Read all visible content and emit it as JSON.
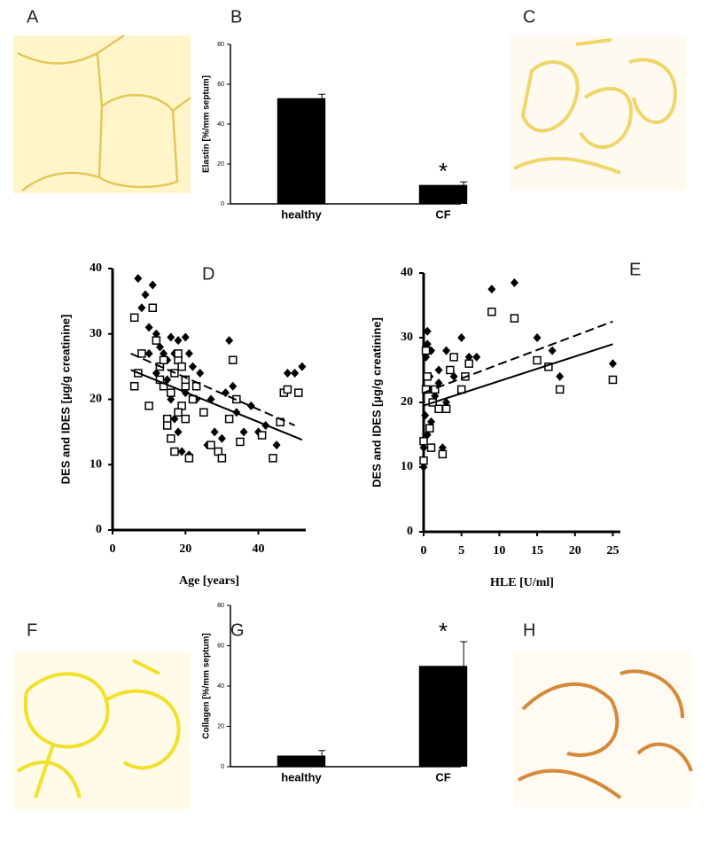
{
  "panel_labels": [
    "A",
    "C",
    "F",
    "H"
  ],
  "chart_data": [
    {
      "type": "bar",
      "title": "B",
      "ylabel": "Elastin [%/mm septum]",
      "categories": [
        "healthy",
        "CF"
      ],
      "values": [
        53,
        9.5
      ],
      "errors": [
        2,
        1.5
      ],
      "color": "#000000",
      "ylim": [
        0,
        80
      ],
      "yticks": [
        0,
        20,
        40,
        60,
        80
      ],
      "annotation": "*",
      "annotation_category": 1
    },
    {
      "type": "scatter",
      "title": "D",
      "xlabel": "Age [years]",
      "ylabel": "DES and IDES [µg/g creatinine]",
      "xlim": [
        0,
        53
      ],
      "xticks": [
        0,
        20,
        40
      ],
      "ylim": [
        0,
        40
      ],
      "yticks": [
        0,
        10,
        20,
        30,
        40
      ],
      "series": [
        {
          "marker": "diamond",
          "color": "#000000",
          "x": [
            7,
            9,
            11,
            8,
            10,
            12,
            13,
            14,
            15,
            16,
            17,
            18,
            19,
            20,
            21,
            22,
            15,
            16,
            17,
            18,
            19,
            21,
            23,
            25,
            26,
            28,
            30,
            31,
            32,
            33,
            34,
            36,
            38,
            40,
            42,
            45,
            48,
            50,
            52,
            12,
            14,
            10,
            20,
            24,
            27
          ],
          "y": [
            38.5,
            36,
            37.5,
            34,
            31,
            30,
            28,
            27,
            26,
            29.5,
            27,
            29,
            25,
            29.5,
            27,
            25,
            23,
            20,
            17,
            15,
            12,
            11.5,
            20,
            18,
            13,
            15,
            14,
            21,
            29,
            22,
            18,
            15,
            19,
            15,
            16,
            13,
            24,
            24,
            25,
            24,
            22,
            27,
            21,
            24,
            20
          ]
        },
        {
          "marker": "square",
          "color": "#000000",
          "x": [
            6,
            7,
            6,
            8,
            10,
            11,
            12,
            13,
            14,
            15,
            16,
            17,
            18,
            19,
            20,
            21,
            22,
            15,
            16,
            17,
            18,
            19,
            20,
            23,
            25,
            27,
            29,
            30,
            32,
            33,
            34,
            35,
            41,
            44,
            46,
            47,
            48,
            51,
            13,
            14,
            18,
            20
          ],
          "y": [
            32.5,
            24,
            22,
            27,
            19,
            34,
            29,
            25,
            22,
            17,
            21,
            24,
            26,
            19,
            22,
            11,
            20,
            16,
            14,
            12,
            18,
            25,
            17,
            22,
            18,
            13,
            12,
            11,
            17,
            26,
            20,
            13.5,
            14.5,
            11,
            16.5,
            21,
            21.5,
            21,
            23,
            26,
            27,
            23
          ]
        }
      ],
      "fit_lines": [
        {
          "dash": false,
          "x": [
            5,
            52
          ],
          "y": [
            24.5,
            13.8
          ]
        },
        {
          "dash": true,
          "x": [
            5,
            50
          ],
          "y": [
            27,
            16
          ]
        }
      ]
    },
    {
      "type": "scatter",
      "title": "E",
      "xlabel": "HLE [U/ml]",
      "ylabel": "DES and IDES [µg/g creatinine]",
      "xlim": [
        0,
        26
      ],
      "xticks": [
        0,
        5,
        10,
        15,
        20,
        25
      ],
      "ylim": [
        0,
        40
      ],
      "yticks": [
        0,
        10,
        20,
        30,
        40
      ],
      "series": [
        {
          "marker": "diamond",
          "color": "#000000",
          "x": [
            0,
            0,
            0.2,
            0.3,
            0.5,
            0.5,
            0.8,
            1,
            1,
            1.5,
            2,
            2,
            2.5,
            3,
            3,
            4,
            5,
            6,
            7,
            9,
            12,
            15,
            17,
            18,
            25,
            0.5,
            1
          ],
          "y": [
            10,
            13,
            18,
            27,
            31,
            29,
            24,
            22,
            17,
            21,
            25,
            23,
            13,
            20,
            28,
            24,
            30,
            27,
            27,
            37.5,
            38.5,
            30,
            28,
            24,
            26,
            15,
            28
          ]
        },
        {
          "marker": "square",
          "color": "#000000",
          "x": [
            0,
            0,
            0.3,
            0.5,
            0.8,
            1,
            1.2,
            1.5,
            2,
            2.5,
            3,
            3.5,
            4,
            5,
            5.5,
            6,
            9,
            12,
            15,
            16.5,
            18,
            25,
            0.3
          ],
          "y": [
            11,
            14,
            22,
            24,
            16,
            13,
            20,
            22,
            19,
            12,
            19,
            25,
            27,
            22,
            24,
            26,
            34,
            33,
            26.5,
            25.5,
            22,
            23.5,
            28
          ]
        }
      ],
      "fit_lines": [
        {
          "dash": false,
          "x": [
            0,
            25
          ],
          "y": [
            19.5,
            29
          ]
        },
        {
          "dash": true,
          "x": [
            0,
            25
          ],
          "y": [
            21.5,
            32.5
          ]
        }
      ]
    },
    {
      "type": "bar",
      "title": "G",
      "ylabel": "Collagen [%/mm septum]",
      "categories": [
        "healthy",
        "CF"
      ],
      "values": [
        5.5,
        50
      ],
      "errors": [
        2.5,
        12
      ],
      "color": "#000000",
      "ylim": [
        0,
        80
      ],
      "yticks": [
        0,
        20,
        40,
        60,
        80
      ],
      "annotation": "*",
      "annotation_category": 1
    }
  ]
}
